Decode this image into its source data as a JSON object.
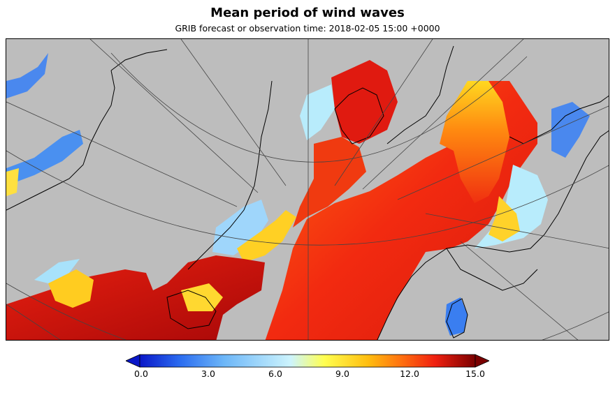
{
  "title": "Mean period of wind waves",
  "subtitle": "GRIB forecast or observation time: 2018-02-05 15:00 +0000",
  "colorbar": {
    "ticks": [
      "0.0",
      "3.0",
      "6.0",
      "9.0",
      "12.0",
      "15.0"
    ],
    "colors": [
      "#0a17c8",
      "#2b6cf0",
      "#6cb6f8",
      "#b8ecfc",
      "#ffff50",
      "#ffbe10",
      "#ff7010",
      "#f02010",
      "#b80808",
      "#7a0000"
    ]
  },
  "map_colors": {
    "land": "#bdbdbd",
    "coastline": "#000000",
    "graticule": "#444444"
  }
}
